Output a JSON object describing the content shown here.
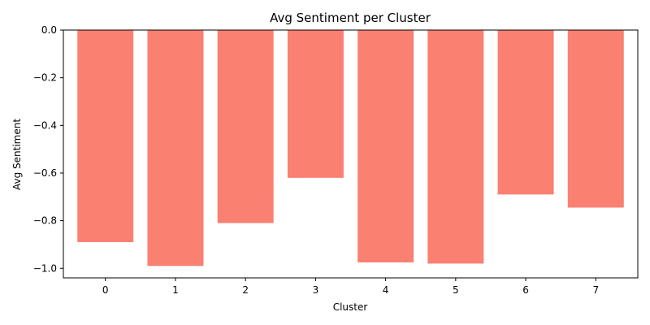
{
  "chart_data": {
    "type": "bar",
    "title": "Avg Sentiment per Cluster",
    "xlabel": "Cluster",
    "ylabel": "Avg Sentiment",
    "categories": [
      "0",
      "1",
      "2",
      "3",
      "4",
      "5",
      "6",
      "7"
    ],
    "values": [
      -0.89,
      -0.99,
      -0.81,
      -0.62,
      -0.975,
      -0.98,
      -0.69,
      -0.745
    ],
    "ylim": [
      -1.04,
      0.0
    ],
    "yticks": [
      0.0,
      -0.2,
      -0.4,
      -0.6,
      -0.8,
      -1.0
    ],
    "ytick_labels": [
      "0.0",
      "−0.2",
      "−0.4",
      "−0.6",
      "−0.8",
      "−1.0"
    ],
    "bar_color": "#fa8072",
    "grid": false,
    "legend": "none"
  }
}
